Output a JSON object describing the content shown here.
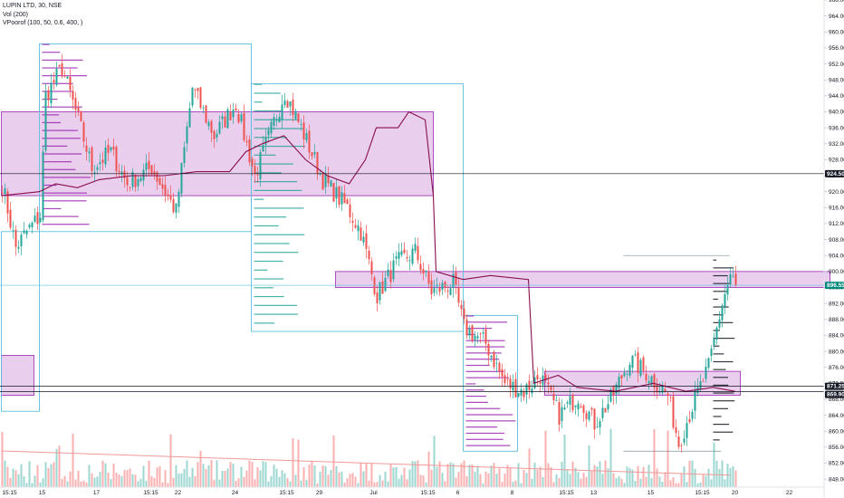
{
  "legend": {
    "symbol_line": "LUPIN LTD, 30, NSE",
    "volume_line": "Vol (200)",
    "vprofile_line": "VPoorof (100, 50, 0.6, 400, )"
  },
  "colors": {
    "up": "#26a69a",
    "down": "#ef5350",
    "zone_fill": "#e1bee7",
    "zone_border": "#9c27b0",
    "poc_line": "#880e4f",
    "range_box": "#5bc0de",
    "profile_bar": "#26a69a",
    "profile_bar_alt": "#9c27b0",
    "label_dark": "#131722",
    "label_teal": "#00897b",
    "volume_ma": "#ef9a9a"
  },
  "chart_data": {
    "type": "candlestick",
    "symbol": "LUPIN LTD",
    "timeframe": "30",
    "exchange": "NSE",
    "ylim": [
      846,
      968
    ],
    "y_ticks": [
      848,
      852,
      856,
      860,
      864,
      868,
      872,
      876,
      880,
      884,
      888,
      892,
      896,
      900,
      904,
      908,
      912,
      916,
      920,
      924,
      928,
      932,
      936,
      940,
      944,
      948,
      952,
      956,
      960,
      964,
      968
    ],
    "x_ticks": [
      {
        "label": "15:15",
        "t": 3
      },
      {
        "label": "15",
        "t": 15
      },
      {
        "label": "17",
        "t": 35
      },
      {
        "label": "15:15",
        "t": 55
      },
      {
        "label": "22",
        "t": 65
      },
      {
        "label": "24",
        "t": 86
      },
      {
        "label": "15:15",
        "t": 105
      },
      {
        "label": "29",
        "t": 117
      },
      {
        "label": "Jul",
        "t": 137
      },
      {
        "label": "15:15",
        "t": 157
      },
      {
        "label": "6",
        "t": 168
      },
      {
        "label": "8",
        "t": 188
      },
      {
        "label": "15:15",
        "t": 208
      },
      {
        "label": "13",
        "t": 218
      },
      {
        "label": "15",
        "t": 239
      },
      {
        "label": "15:15",
        "t": 258
      },
      {
        "label": "20",
        "t": 270
      },
      {
        "label": "22",
        "t": 290
      }
    ],
    "price_labels": [
      {
        "value": 924.5,
        "text": "924.50",
        "style": "dark"
      },
      {
        "value": 896.55,
        "text": "896.55",
        "style": "teal"
      },
      {
        "value": 871.25,
        "text": "871.25",
        "style": "dark"
      },
      {
        "value": 869.9,
        "text": "869.90",
        "style": "dark"
      }
    ],
    "horizontal_lines": [
      924.5,
      896.55,
      871.25,
      869.9
    ],
    "zones": [
      {
        "t0": 0,
        "t1": 159,
        "top": 940,
        "bottom": 919
      },
      {
        "t0": 123,
        "t1": 305,
        "top": 900,
        "bottom": 896
      },
      {
        "t0": 200,
        "t1": 272,
        "top": 875,
        "bottom": 869
      },
      {
        "t0": 0,
        "t1": 12,
        "top": 879,
        "bottom": 869
      }
    ],
    "range_boxes": [
      {
        "t0": 0,
        "t1": 14,
        "top": 910,
        "bottom": 865
      },
      {
        "t0": 14,
        "t1": 92,
        "top": 957,
        "bottom": 910
      },
      {
        "t0": 92,
        "t1": 170,
        "top": 947,
        "bottom": 885
      },
      {
        "t0": 170,
        "t1": 190,
        "top": 889,
        "bottom": 855
      },
      {
        "t0": 229,
        "t1": 265,
        "top": 855,
        "bottom": 855
      },
      {
        "t0": 229,
        "t1": 268,
        "top": 904,
        "bottom": 904
      }
    ],
    "anchors": [
      {
        "t": 0,
        "p": 922
      },
      {
        "t": 5,
        "p": 906
      },
      {
        "t": 9,
        "p": 910
      },
      {
        "t": 14,
        "p": 914
      },
      {
        "t": 16,
        "p": 944
      },
      {
        "t": 22,
        "p": 951
      },
      {
        "t": 28,
        "p": 938
      },
      {
        "t": 33,
        "p": 926
      },
      {
        "t": 40,
        "p": 930
      },
      {
        "t": 46,
        "p": 922
      },
      {
        "t": 55,
        "p": 926
      },
      {
        "t": 64,
        "p": 915
      },
      {
        "t": 70,
        "p": 946
      },
      {
        "t": 78,
        "p": 934
      },
      {
        "t": 86,
        "p": 942
      },
      {
        "t": 93,
        "p": 924
      },
      {
        "t": 104,
        "p": 945
      },
      {
        "t": 110,
        "p": 936
      },
      {
        "t": 118,
        "p": 923
      },
      {
        "t": 127,
        "p": 916
      },
      {
        "t": 132,
        "p": 910
      },
      {
        "t": 138,
        "p": 894
      },
      {
        "t": 145,
        "p": 902
      },
      {
        "t": 152,
        "p": 905
      },
      {
        "t": 158,
        "p": 895
      },
      {
        "t": 166,
        "p": 897
      },
      {
        "t": 170,
        "p": 886
      },
      {
        "t": 178,
        "p": 882
      },
      {
        "t": 185,
        "p": 872
      },
      {
        "t": 192,
        "p": 870
      },
      {
        "t": 198,
        "p": 874
      },
      {
        "t": 205,
        "p": 864
      },
      {
        "t": 212,
        "p": 869
      },
      {
        "t": 218,
        "p": 862
      },
      {
        "t": 224,
        "p": 868
      },
      {
        "t": 231,
        "p": 878
      },
      {
        "t": 238,
        "p": 874
      },
      {
        "t": 245,
        "p": 869
      },
      {
        "t": 249,
        "p": 857
      },
      {
        "t": 255,
        "p": 868
      },
      {
        "t": 260,
        "p": 876
      },
      {
        "t": 265,
        "p": 892
      },
      {
        "t": 268,
        "p": 899
      },
      {
        "t": 270,
        "p": 896.55
      }
    ],
    "total_bars": 271,
    "seed": 7,
    "poc_line": [
      {
        "t": 0,
        "p": 919
      },
      {
        "t": 14,
        "p": 920
      },
      {
        "t": 20,
        "p": 922
      },
      {
        "t": 28,
        "p": 921
      },
      {
        "t": 36,
        "p": 923
      },
      {
        "t": 48,
        "p": 924
      },
      {
        "t": 60,
        "p": 924
      },
      {
        "t": 72,
        "p": 925
      },
      {
        "t": 84,
        "p": 925
      },
      {
        "t": 90,
        "p": 930
      },
      {
        "t": 96,
        "p": 932
      },
      {
        "t": 104,
        "p": 934
      },
      {
        "t": 112,
        "p": 928
      },
      {
        "t": 120,
        "p": 924
      },
      {
        "t": 128,
        "p": 922
      },
      {
        "t": 134,
        "p": 928
      },
      {
        "t": 138,
        "p": 936
      },
      {
        "t": 146,
        "p": 936
      },
      {
        "t": 150,
        "p": 940
      },
      {
        "t": 156,
        "p": 938
      },
      {
        "t": 159,
        "p": 919
      },
      {
        "t": 160,
        "p": 900
      },
      {
        "t": 170,
        "p": 898
      },
      {
        "t": 180,
        "p": 899
      },
      {
        "t": 194,
        "p": 898
      },
      {
        "t": 196,
        "p": 872
      },
      {
        "t": 205,
        "p": 874
      },
      {
        "t": 212,
        "p": 871
      },
      {
        "t": 226,
        "p": 870
      },
      {
        "t": 240,
        "p": 872
      },
      {
        "t": 252,
        "p": 870
      },
      {
        "t": 262,
        "p": 871
      },
      {
        "t": 270,
        "p": 870
      }
    ],
    "profiles": [
      {
        "t0": 15,
        "t1": 33,
        "top": 957,
        "bottom": 910,
        "rows": 24,
        "color": "#9c27b0",
        "seed": 3
      },
      {
        "t0": 93,
        "t1": 112,
        "top": 947,
        "bottom": 885,
        "rows": 28,
        "color": "#26a69a",
        "seed": 5
      },
      {
        "t0": 171,
        "t1": 190,
        "top": 889,
        "bottom": 855,
        "rows": 22,
        "color": "#9c27b0",
        "seed": 9
      },
      {
        "t0": 262,
        "t1": 270,
        "top": 903,
        "bottom": 856,
        "rows": 24,
        "color": "#131722",
        "seed": 11
      }
    ],
    "volume_baseline_price": 846,
    "volume_max_price": 866
  }
}
